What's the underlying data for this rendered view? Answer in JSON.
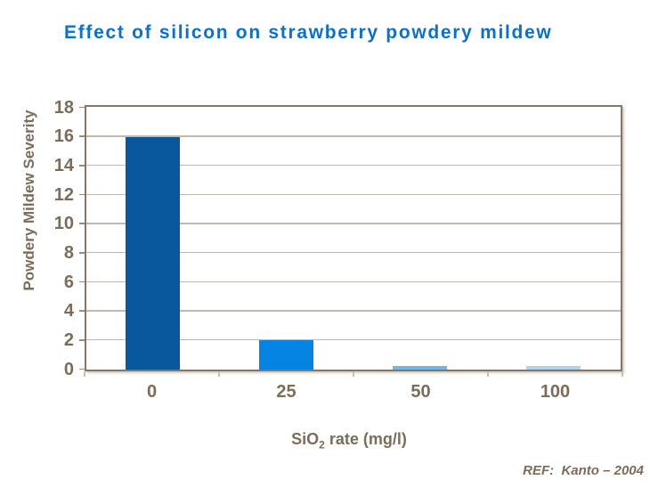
{
  "title": "Effect of silicon on strawberry powdery mildew",
  "reference": "REF:  Kanto – 2004",
  "colors": {
    "title": "#0a70d2",
    "axis_text": "#7c6c58",
    "axis_line": "#867663",
    "gridline": "#c1b9af",
    "tick_y": "#9b8d7c",
    "tick_x": "#c4beb6",
    "bars": [
      "#09589d",
      "#0684e4",
      "#6fb6e9",
      "#abd4f1"
    ]
  },
  "chart_data": {
    "type": "bar",
    "title": "Effect of silicon on strawberry powdery mildew",
    "categories": [
      "0",
      "25",
      "50",
      "100"
    ],
    "values": [
      16,
      2,
      0.2,
      0.2
    ],
    "xlabel": "SiO2 rate (mg/l)",
    "xlabel_parts": {
      "prefix": "SiO",
      "sub": "2",
      "suffix": " rate (mg/l)"
    },
    "ylabel": "Powdery Mildew Severity",
    "ylim": [
      0,
      18
    ],
    "ytick_step": 2,
    "grid": true,
    "legend": false
  }
}
